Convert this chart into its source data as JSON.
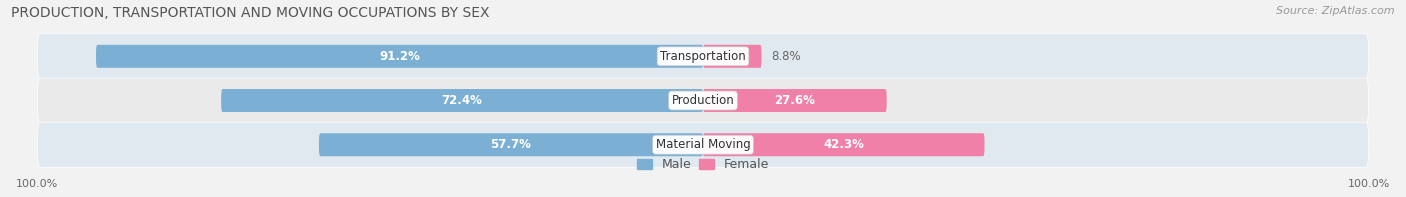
{
  "title": "PRODUCTION, TRANSPORTATION AND MOVING OCCUPATIONS BY SEX",
  "source": "Source: ZipAtlas.com",
  "categories": [
    "Transportation",
    "Production",
    "Material Moving"
  ],
  "male_pct": [
    91.2,
    72.4,
    57.7
  ],
  "female_pct": [
    8.8,
    27.6,
    42.3
  ],
  "male_color": "#7bafd4",
  "female_color": "#f080a8",
  "male_label_inside_color": "#ffffff",
  "male_label_outside_color": "#666666",
  "female_label_color": "#666666",
  "bg_color": "#f2f2f2",
  "row_bg_colors": [
    "#e0e8f0",
    "#eaeaea"
  ],
  "title_fontsize": 10,
  "source_fontsize": 8,
  "bar_label_fontsize": 8.5,
  "category_fontsize": 8.5,
  "legend_fontsize": 9,
  "axis_label_fontsize": 8,
  "figsize": [
    14.06,
    1.97
  ],
  "dpi": 100,
  "male_inside_threshold": 20
}
